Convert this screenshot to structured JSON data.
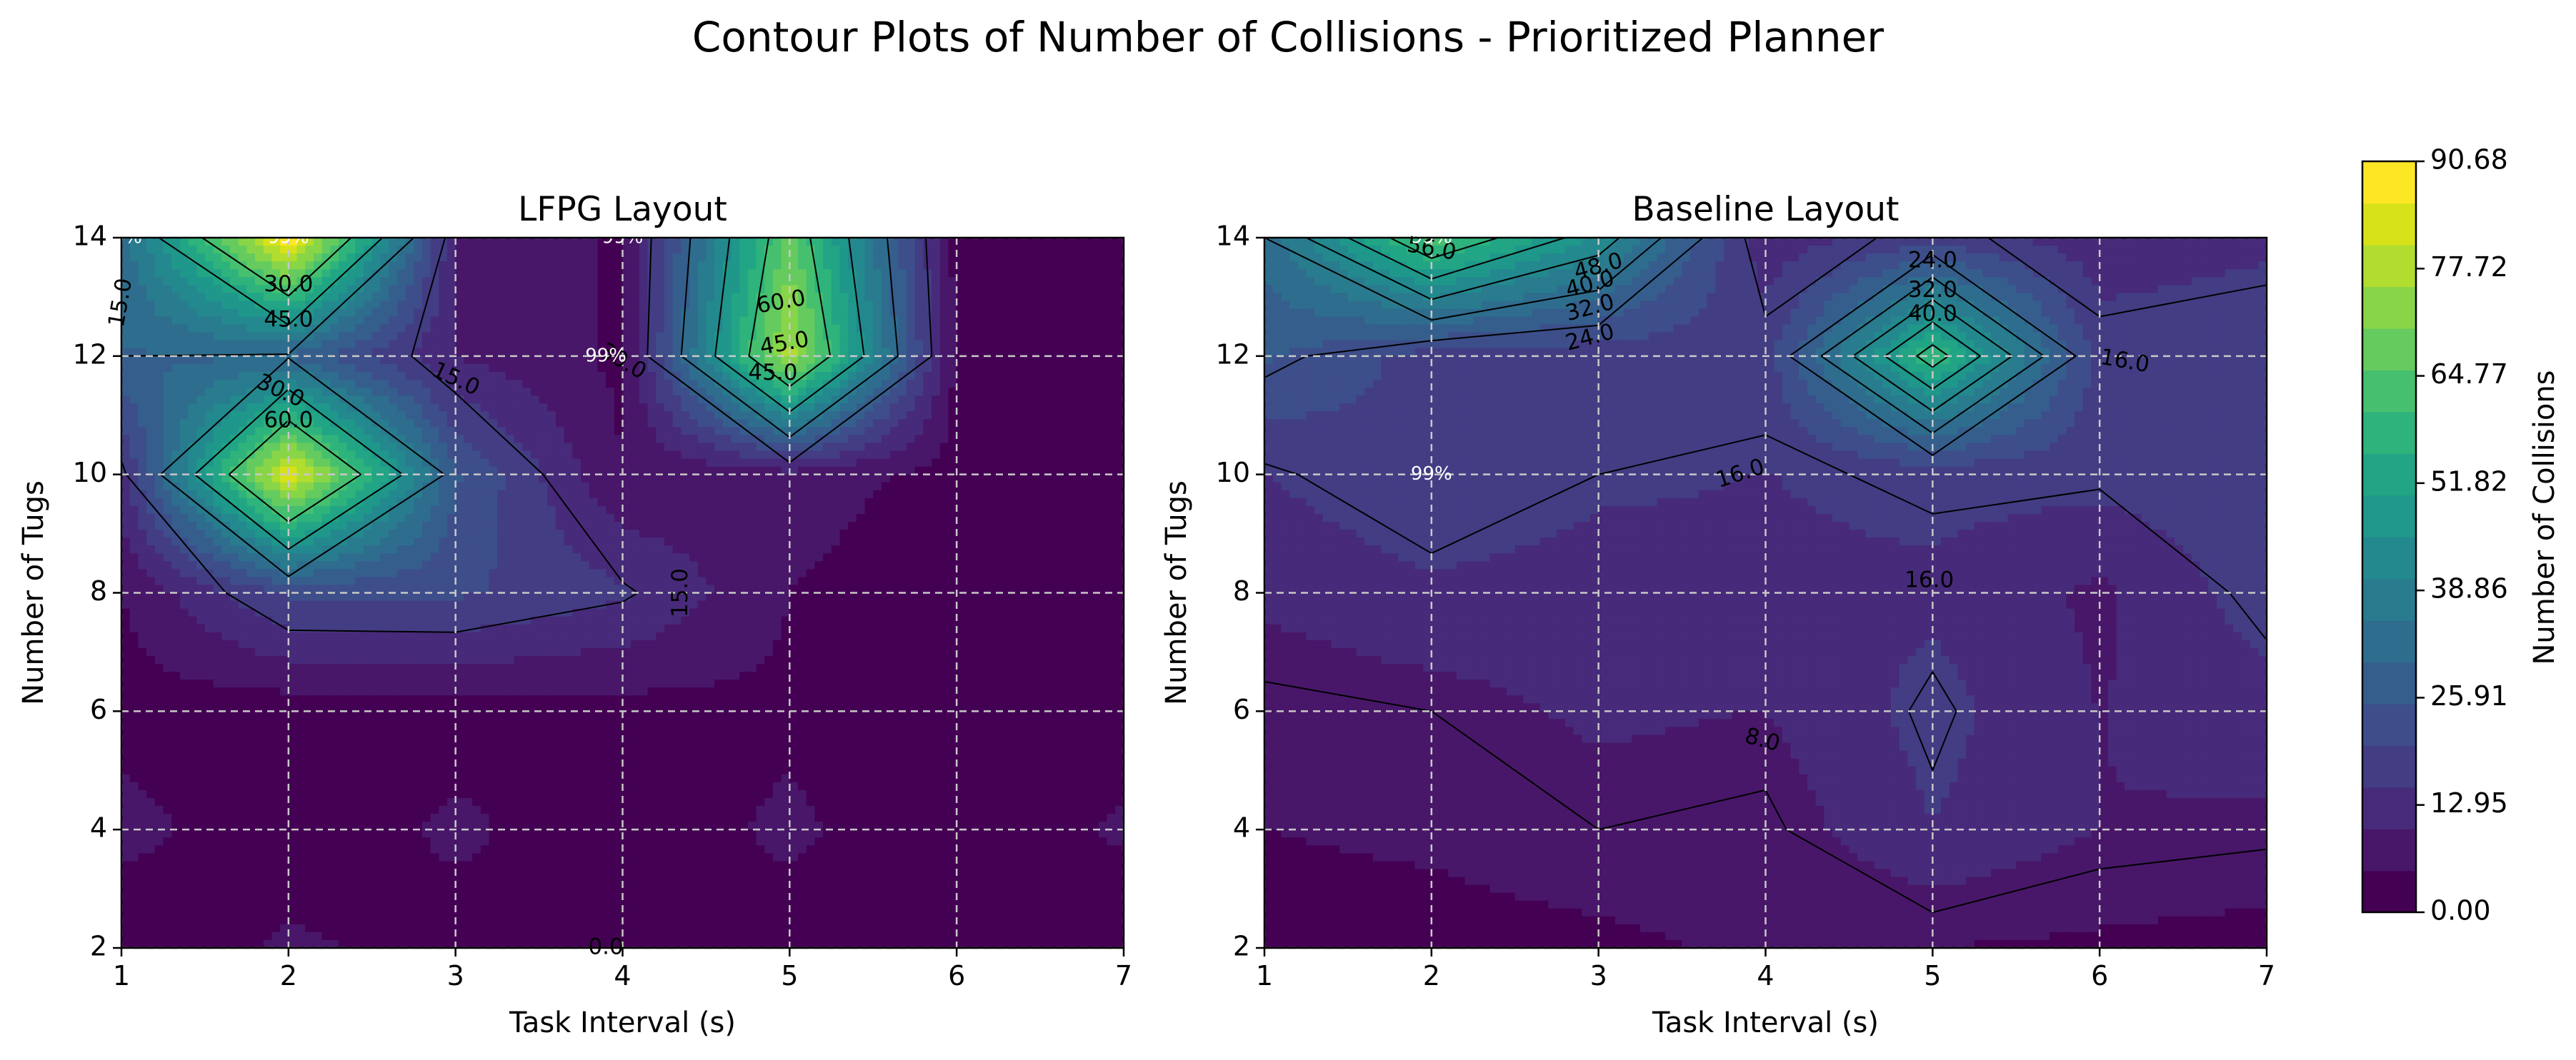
{
  "figure": {
    "title": "Contour Plots of Number of Collisions - Prioritized Planner"
  },
  "colorbar": {
    "label": "Number of Collisions",
    "ticks": [
      "0.00",
      "12.95",
      "25.91",
      "38.86",
      "51.82",
      "64.77",
      "77.72",
      "90.68"
    ],
    "range": [
      0,
      90.68
    ],
    "colormap": [
      "#440154",
      "#481769",
      "#472a7a",
      "#433d84",
      "#3d4e8a",
      "#355e8d",
      "#2e6d8e",
      "#297b8e",
      "#23898e",
      "#1f978b",
      "#21a585",
      "#2eb37c",
      "#46c06f",
      "#65cb5e",
      "#89d548",
      "#b0dd2f",
      "#d8e219",
      "#fde725"
    ]
  },
  "chart_data": [
    {
      "type": "heatmap",
      "subtype": "filled-contour",
      "title": "LFPG Layout",
      "xlabel": "Task Interval (s)",
      "ylabel": "Number of Tugs",
      "x": [
        1,
        2,
        3,
        4,
        5,
        6,
        7
      ],
      "y": [
        2,
        4,
        6,
        8,
        10,
        12,
        14
      ],
      "xlim": [
        1,
        7
      ],
      "ylim": [
        2,
        14
      ],
      "xticks": [
        "1",
        "2",
        "3",
        "4",
        "5",
        "6",
        "7"
      ],
      "yticks": [
        "2",
        "4",
        "6",
        "8",
        "10",
        "12",
        "14"
      ],
      "grid": true,
      "z": [
        [
          0,
          6,
          3,
          2,
          3,
          2,
          0
        ],
        [
          7,
          1,
          6,
          2,
          6,
          1,
          6
        ],
        [
          3,
          2,
          3,
          3,
          4,
          0,
          2
        ],
        [
          5,
          21,
          21,
          16,
          5,
          1,
          3
        ],
        [
          13,
          86,
          26,
          5,
          8,
          3,
          3
        ],
        [
          30,
          29,
          10,
          4,
          78,
          4,
          5
        ],
        [
          32,
          90,
          10,
          4,
          68,
          3,
          3
        ]
      ],
      "contour_levels": [
        0,
        15,
        30,
        45,
        60
      ],
      "contour_labels": [
        "0.0",
        "15.0",
        "30.0",
        "45.0",
        "60.0",
        "45.0",
        "60.0",
        "45.0",
        "15.0",
        "30.0",
        "30.0",
        "15.0"
      ],
      "annotations": [
        "99%",
        "99%",
        "99%",
        "99%"
      ]
    },
    {
      "type": "heatmap",
      "subtype": "filled-contour",
      "title": "Baseline Layout",
      "xlabel": "Task Interval (s)",
      "ylabel": "Number of Tugs",
      "x": [
        1,
        2,
        3,
        4,
        5,
        6,
        7
      ],
      "y": [
        2,
        4,
        6,
        8,
        10,
        12,
        14
      ],
      "xlim": [
        1,
        7
      ],
      "ylim": [
        2,
        14
      ],
      "xticks": [
        "1",
        "2",
        "3",
        "4",
        "5",
        "6",
        "7"
      ],
      "yticks": [
        "2",
        "4",
        "6",
        "8",
        "10",
        "12",
        "14"
      ],
      "grid": true,
      "z": [
        [
          3,
          3,
          4,
          6,
          5,
          4,
          3
        ],
        [
          5,
          6,
          8,
          7,
          15,
          10,
          9
        ],
        [
          7,
          8,
          11,
          10,
          17,
          10,
          13
        ],
        [
          11,
          14,
          13,
          14,
          14,
          9,
          18
        ],
        [
          15,
          20,
          16,
          15,
          17,
          17,
          19
        ],
        [
          26,
          18,
          17,
          18,
          60,
          18,
          19
        ],
        [
          32,
          64,
          44,
          12,
          18,
          12,
          14
        ]
      ],
      "contour_levels": [
        8,
        16,
        24,
        32,
        40,
        48,
        56
      ],
      "contour_labels": [
        "56.0",
        "48.0",
        "40.0",
        "32.0",
        "24.0",
        "24.0",
        "32.0",
        "40.0",
        "16.0",
        "16.0",
        "16.0",
        "8.0"
      ],
      "annotations": [
        "99%",
        "99%"
      ]
    }
  ]
}
